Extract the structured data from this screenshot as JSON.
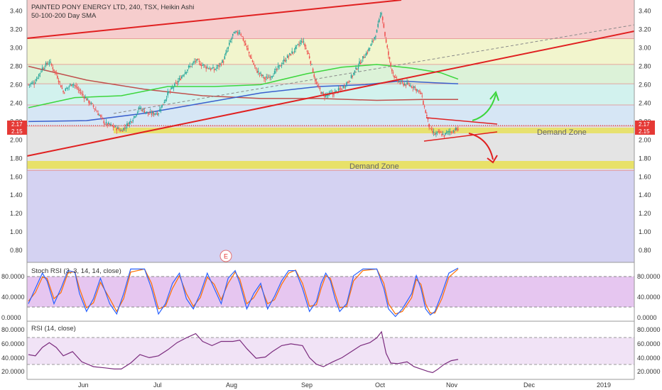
{
  "header": {
    "title": "PAINTED PONY ENERGY LTD, 240, TSX, Heikin Ashi",
    "subtitle": "50-100-200 Day SMA"
  },
  "price_axis": {
    "ticks": [
      "3.40",
      "3.20",
      "3.00",
      "2.80",
      "2.60",
      "2.40",
      "2.20",
      "2.00",
      "1.80",
      "1.60",
      "1.40",
      "1.20",
      "1.00",
      "0.80"
    ],
    "last_price_label": "2.17",
    "support_label": "2.15"
  },
  "time_axis": {
    "labels": [
      "Jun",
      "Jul",
      "Aug",
      "Sep",
      "Oct",
      "Nov",
      "Dec",
      "2019"
    ]
  },
  "zones": {
    "upper_label": "Demand Zone",
    "lower_label": "Demand Zone"
  },
  "earnings_marker": "E",
  "stoch": {
    "label": "Stoch RSI (3, 3, 14, 14, close)",
    "ticks": [
      "80.0000",
      "40.0000",
      "0.0000"
    ],
    "k_color": "#2962ff",
    "d_color": "#ff6d00"
  },
  "rsi": {
    "label": "RSI (14, close)",
    "ticks": [
      "80.0000",
      "60.0000",
      "40.0000",
      "20.0000"
    ],
    "line_color": "#7b2c7e"
  },
  "colors": {
    "bull": "#26a69a",
    "bear": "#ef5350",
    "trend_red": "#e02020",
    "sma50": "#3cd63c",
    "sma100": "#3a5fcd",
    "sma200": "#c0504d",
    "zone_yellow": "#e8e05a"
  },
  "chart_data": {
    "type": "candlestick",
    "ylim": [
      0.67,
      3.52
    ],
    "bands": [
      {
        "from": 3.1,
        "to": 3.52,
        "color": "#f6cdcd"
      },
      {
        "from": 2.82,
        "to": 3.1,
        "color": "#f2f5cd"
      },
      {
        "from": 2.61,
        "to": 2.82,
        "color": "#dcf2d8"
      },
      {
        "from": 2.38,
        "to": 2.61,
        "color": "#d2f2ee"
      },
      {
        "from": 2.15,
        "to": 2.38,
        "color": "#d6e6f5"
      },
      {
        "from": 1.67,
        "to": 2.15,
        "color": "#e4e4e4"
      },
      {
        "from": 0.67,
        "to": 1.67,
        "color": "#d4d2f2"
      }
    ],
    "anchors": [
      [
        0,
        2.6
      ],
      [
        5,
        2.62
      ],
      [
        12,
        2.78
      ],
      [
        18,
        2.85
      ],
      [
        24,
        2.72
      ],
      [
        30,
        2.52
      ],
      [
        38,
        2.62
      ],
      [
        46,
        2.5
      ],
      [
        56,
        2.36
      ],
      [
        66,
        2.18
      ],
      [
        74,
        2.14
      ],
      [
        80,
        2.1
      ],
      [
        88,
        2.2
      ],
      [
        96,
        2.35
      ],
      [
        104,
        2.28
      ],
      [
        112,
        2.3
      ],
      [
        120,
        2.5
      ],
      [
        128,
        2.62
      ],
      [
        136,
        2.76
      ],
      [
        144,
        2.86
      ],
      [
        152,
        2.8
      ],
      [
        160,
        2.76
      ],
      [
        168,
        2.86
      ],
      [
        176,
        3.14
      ],
      [
        182,
        3.18
      ],
      [
        188,
        3.0
      ],
      [
        196,
        2.76
      ],
      [
        204,
        2.66
      ],
      [
        212,
        2.73
      ],
      [
        220,
        2.86
      ],
      [
        228,
        2.96
      ],
      [
        236,
        3.08
      ],
      [
        242,
        2.9
      ],
      [
        248,
        2.6
      ],
      [
        254,
        2.48
      ],
      [
        262,
        2.5
      ],
      [
        270,
        2.56
      ],
      [
        278,
        2.68
      ],
      [
        286,
        2.85
      ],
      [
        294,
        3.0
      ],
      [
        300,
        3.18
      ],
      [
        304,
        3.4
      ],
      [
        308,
        3.05
      ],
      [
        312,
        2.8
      ],
      [
        316,
        2.66
      ],
      [
        320,
        2.62
      ],
      [
        326,
        2.6
      ],
      [
        332,
        2.58
      ],
      [
        338,
        2.5
      ],
      [
        342,
        2.3
      ],
      [
        346,
        2.1
      ],
      [
        350,
        2.06
      ],
      [
        354,
        2.08
      ],
      [
        358,
        2.05
      ],
      [
        362,
        2.09
      ],
      [
        366,
        2.1
      ],
      [
        370,
        2.12
      ]
    ],
    "total_bars": 371,
    "sma50": [
      [
        0,
        2.35
      ],
      [
        40,
        2.46
      ],
      [
        80,
        2.48
      ],
      [
        120,
        2.58
      ],
      [
        160,
        2.58
      ],
      [
        200,
        2.6
      ],
      [
        240,
        2.72
      ],
      [
        270,
        2.79
      ],
      [
        300,
        2.82
      ],
      [
        330,
        2.78
      ],
      [
        355,
        2.73
      ],
      [
        370,
        2.66
      ]
    ],
    "sma100": [
      [
        0,
        2.2
      ],
      [
        50,
        2.21
      ],
      [
        100,
        2.29
      ],
      [
        150,
        2.4
      ],
      [
        200,
        2.51
      ],
      [
        250,
        2.58
      ],
      [
        290,
        2.6
      ],
      [
        320,
        2.64
      ],
      [
        350,
        2.62
      ],
      [
        370,
        2.61
      ]
    ],
    "sma200": [
      [
        0,
        2.8
      ],
      [
        50,
        2.65
      ],
      [
        100,
        2.55
      ],
      [
        150,
        2.48
      ],
      [
        200,
        2.45
      ],
      [
        250,
        2.45
      ],
      [
        300,
        2.43
      ],
      [
        340,
        2.44
      ],
      [
        370,
        2.44
      ]
    ],
    "stoch_k": [
      [
        0,
        30
      ],
      [
        6,
        60
      ],
      [
        12,
        90
      ],
      [
        16,
        75
      ],
      [
        22,
        30
      ],
      [
        28,
        60
      ],
      [
        34,
        95
      ],
      [
        40,
        92
      ],
      [
        44,
        50
      ],
      [
        50,
        15
      ],
      [
        56,
        40
      ],
      [
        62,
        80
      ],
      [
        70,
        30
      ],
      [
        76,
        10
      ],
      [
        82,
        50
      ],
      [
        88,
        98
      ],
      [
        100,
        98
      ],
      [
        106,
        60
      ],
      [
        112,
        10
      ],
      [
        118,
        30
      ],
      [
        124,
        70
      ],
      [
        130,
        90
      ],
      [
        136,
        40
      ],
      [
        142,
        20
      ],
      [
        148,
        50
      ],
      [
        154,
        90
      ],
      [
        160,
        60
      ],
      [
        166,
        30
      ],
      [
        172,
        80
      ],
      [
        178,
        95
      ],
      [
        182,
        70
      ],
      [
        188,
        20
      ],
      [
        194,
        50
      ],
      [
        200,
        70
      ],
      [
        206,
        20
      ],
      [
        212,
        45
      ],
      [
        218,
        75
      ],
      [
        224,
        95
      ],
      [
        230,
        95
      ],
      [
        236,
        60
      ],
      [
        242,
        15
      ],
      [
        248,
        35
      ],
      [
        252,
        70
      ],
      [
        256,
        90
      ],
      [
        260,
        75
      ],
      [
        264,
        40
      ],
      [
        268,
        15
      ],
      [
        274,
        30
      ],
      [
        280,
        85
      ],
      [
        288,
        98
      ],
      [
        300,
        98
      ],
      [
        306,
        60
      ],
      [
        310,
        20
      ],
      [
        316,
        5
      ],
      [
        322,
        20
      ],
      [
        330,
        50
      ],
      [
        334,
        85
      ],
      [
        338,
        60
      ],
      [
        342,
        20
      ],
      [
        346,
        8
      ],
      [
        350,
        15
      ],
      [
        356,
        50
      ],
      [
        362,
        90
      ],
      [
        370,
        100
      ]
    ],
    "stoch_d": [
      [
        0,
        35
      ],
      [
        6,
        52
      ],
      [
        12,
        82
      ],
      [
        16,
        80
      ],
      [
        22,
        40
      ],
      [
        28,
        52
      ],
      [
        34,
        90
      ],
      [
        40,
        93
      ],
      [
        44,
        60
      ],
      [
        50,
        22
      ],
      [
        56,
        32
      ],
      [
        62,
        72
      ],
      [
        70,
        40
      ],
      [
        76,
        15
      ],
      [
        82,
        40
      ],
      [
        88,
        92
      ],
      [
        100,
        98
      ],
      [
        106,
        70
      ],
      [
        112,
        20
      ],
      [
        118,
        25
      ],
      [
        124,
        60
      ],
      [
        130,
        85
      ],
      [
        136,
        50
      ],
      [
        142,
        25
      ],
      [
        148,
        42
      ],
      [
        154,
        82
      ],
      [
        160,
        68
      ],
      [
        166,
        38
      ],
      [
        172,
        70
      ],
      [
        178,
        92
      ],
      [
        182,
        78
      ],
      [
        188,
        30
      ],
      [
        194,
        42
      ],
      [
        200,
        65
      ],
      [
        206,
        30
      ],
      [
        212,
        38
      ],
      [
        218,
        68
      ],
      [
        224,
        90
      ],
      [
        230,
        96
      ],
      [
        236,
        70
      ],
      [
        242,
        25
      ],
      [
        248,
        28
      ],
      [
        252,
        60
      ],
      [
        256,
        85
      ],
      [
        260,
        80
      ],
      [
        264,
        50
      ],
      [
        268,
        22
      ],
      [
        274,
        25
      ],
      [
        280,
        75
      ],
      [
        288,
        95
      ],
      [
        300,
        98
      ],
      [
        306,
        70
      ],
      [
        310,
        30
      ],
      [
        316,
        10
      ],
      [
        322,
        15
      ],
      [
        330,
        42
      ],
      [
        334,
        78
      ],
      [
        338,
        68
      ],
      [
        342,
        30
      ],
      [
        346,
        12
      ],
      [
        350,
        12
      ],
      [
        356,
        40
      ],
      [
        362,
        82
      ],
      [
        370,
        98
      ]
    ],
    "rsi": [
      [
        0,
        50
      ],
      [
        6,
        48
      ],
      [
        12,
        62
      ],
      [
        18,
        70
      ],
      [
        24,
        62
      ],
      [
        30,
        48
      ],
      [
        38,
        55
      ],
      [
        46,
        38
      ],
      [
        56,
        30
      ],
      [
        66,
        28
      ],
      [
        74,
        26
      ],
      [
        80,
        26
      ],
      [
        88,
        36
      ],
      [
        96,
        50
      ],
      [
        104,
        45
      ],
      [
        112,
        48
      ],
      [
        120,
        58
      ],
      [
        128,
        70
      ],
      [
        136,
        78
      ],
      [
        144,
        85
      ],
      [
        150,
        72
      ],
      [
        158,
        65
      ],
      [
        166,
        72
      ],
      [
        176,
        72
      ],
      [
        182,
        74
      ],
      [
        188,
        60
      ],
      [
        196,
        44
      ],
      [
        204,
        46
      ],
      [
        210,
        55
      ],
      [
        218,
        65
      ],
      [
        226,
        68
      ],
      [
        236,
        65
      ],
      [
        242,
        45
      ],
      [
        248,
        34
      ],
      [
        254,
        30
      ],
      [
        262,
        38
      ],
      [
        270,
        45
      ],
      [
        278,
        55
      ],
      [
        286,
        65
      ],
      [
        294,
        70
      ],
      [
        300,
        78
      ],
      [
        304,
        88
      ],
      [
        308,
        52
      ],
      [
        312,
        36
      ],
      [
        318,
        35
      ],
      [
        326,
        38
      ],
      [
        332,
        30
      ],
      [
        338,
        26
      ],
      [
        344,
        22
      ],
      [
        348,
        20
      ],
      [
        352,
        25
      ],
      [
        358,
        34
      ],
      [
        364,
        40
      ],
      [
        370,
        42
      ]
    ]
  }
}
